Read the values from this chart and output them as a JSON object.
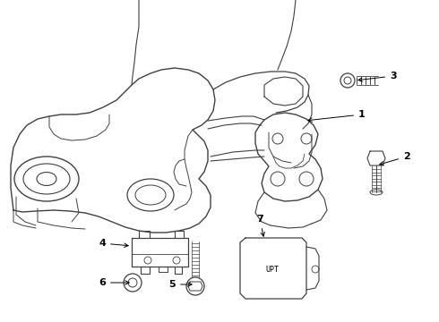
{
  "bg_color": "#ffffff",
  "line_color": "#404040",
  "label_color": "#000000",
  "lw": 0.9,
  "fig_width": 4.9,
  "fig_height": 3.6,
  "dpi": 100
}
